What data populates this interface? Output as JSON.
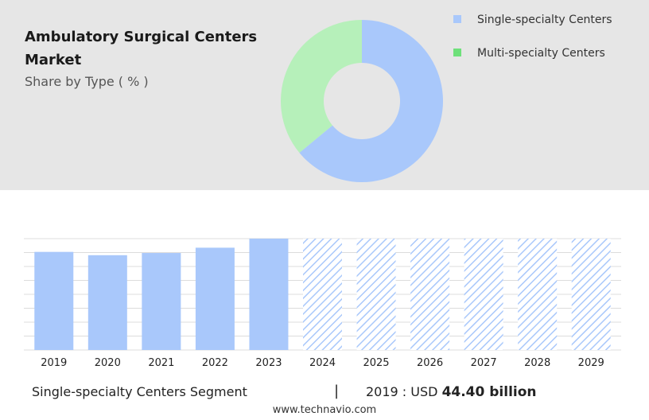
{
  "header": {
    "title": "Ambulatory Surgical Centers Market",
    "subtitle": "Share by Type ( % )"
  },
  "colors": {
    "single_specialty": "#a9c8fb",
    "multi_specialty": "#b6f0ba",
    "hatch": "#a9c8fb",
    "panel_bg": "#e6e6e6"
  },
  "chart_data": [
    {
      "type": "pie",
      "variant": "donut",
      "categories": [
        "Single-specialty Centers",
        "Multi-specialty Centers"
      ],
      "values": [
        64,
        36
      ],
      "legend": {
        "position": "top-right",
        "items": [
          {
            "label": "Single-specialty Centers",
            "color": "#a9c8fb",
            "swatch_color": "#a9c8fb"
          },
          {
            "label": "Multi-specialty Centers",
            "color": "#b6f0ba",
            "swatch_color": "#6ee07a"
          }
        ]
      }
    },
    {
      "type": "bar",
      "categories": [
        "2019",
        "2020",
        "2021",
        "2022",
        "2023",
        "2024",
        "2025",
        "2026",
        "2027",
        "2028",
        "2029"
      ],
      "values": [
        44.4,
        42.9,
        43.9,
        46.3,
        50.4,
        50.4,
        50.4,
        50.4,
        50.4,
        50.4,
        50.4
      ],
      "forecast": [
        false,
        false,
        false,
        false,
        false,
        true,
        true,
        true,
        true,
        true,
        true
      ],
      "ylim": [
        0,
        50.4
      ],
      "grid": true,
      "y_axis_labels": false
    }
  ],
  "footer": {
    "segment_label": "Single-specialty Centers Segment",
    "separator": "|",
    "value_prefix": "2019 : USD",
    "value_bold": "44.40 billion",
    "source": "www.technavio.com"
  }
}
